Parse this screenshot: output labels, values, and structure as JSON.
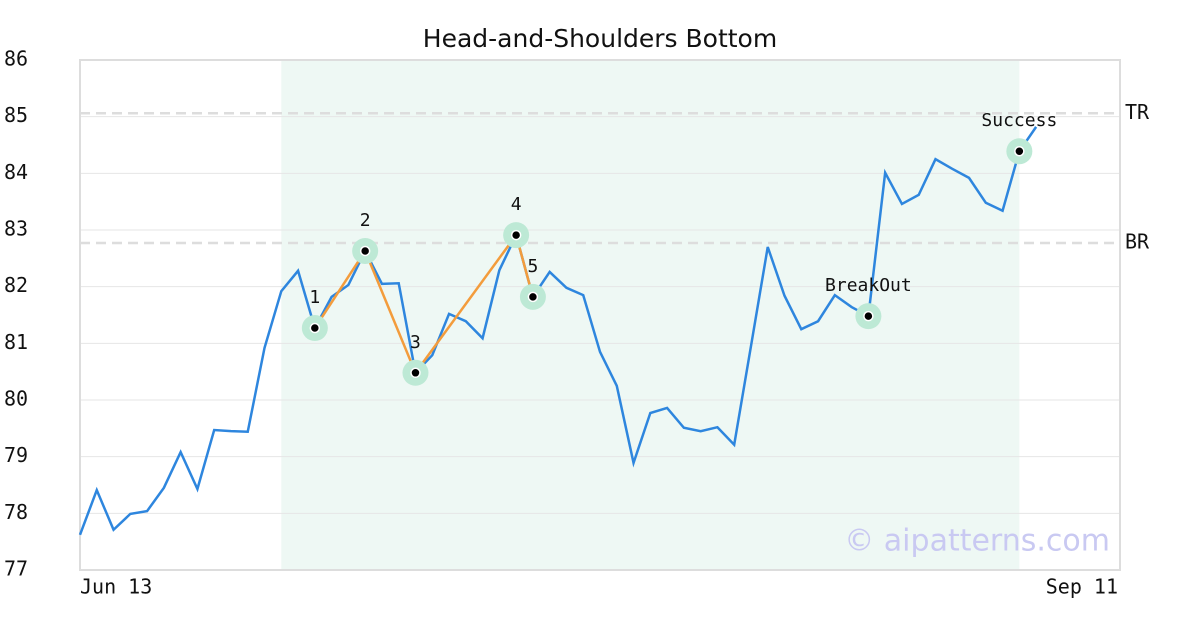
{
  "chart_data": {
    "type": "line",
    "title": "Head-and-Shoulders Bottom",
    "xlim": [
      0,
      62
    ],
    "xticks": [
      {
        "value": 0,
        "label": "Jun 13"
      },
      {
        "value": 62,
        "label": "Sep 11"
      }
    ],
    "ylim": [
      77,
      86
    ],
    "yticks": [
      77,
      78,
      79,
      80,
      81,
      82,
      83,
      84,
      85,
      86
    ],
    "grid": true,
    "highlight": [
      12,
      56
    ],
    "series": [
      {
        "color": "#2e86de",
        "x": [
          0,
          1,
          2,
          3,
          4,
          5,
          6,
          7,
          8,
          9,
          10,
          11,
          12,
          13,
          14,
          15,
          16,
          17,
          18,
          19,
          20,
          21,
          22,
          23,
          24,
          25,
          26,
          27,
          28,
          29,
          30,
          31,
          32,
          33,
          34,
          35,
          36,
          37,
          38,
          39,
          40,
          41,
          42,
          43,
          44,
          45,
          46,
          47,
          48,
          49,
          50,
          51,
          52,
          53,
          54,
          55,
          56,
          57
        ],
        "values": [
          77.62,
          78.41,
          77.71,
          77.99,
          78.04,
          78.45,
          79.08,
          78.43,
          79.47,
          79.45,
          79.44,
          80.92,
          81.92,
          82.28,
          81.27,
          81.82,
          82.03,
          82.63,
          82.05,
          82.06,
          80.48,
          80.79,
          81.52,
          81.39,
          81.09,
          82.29,
          82.91,
          81.82,
          82.26,
          81.98,
          81.85,
          80.85,
          80.25,
          78.89,
          79.77,
          79.86,
          79.51,
          79.45,
          79.52,
          79.21,
          80.95,
          82.7,
          81.84,
          81.25,
          81.39,
          81.85,
          81.64,
          81.48,
          84.01,
          83.46,
          83.62,
          84.25,
          84.08,
          83.92,
          83.48,
          83.34,
          84.39,
          84.82
        ]
      }
    ],
    "pattern_color": "#f39c3c",
    "points": [
      {
        "label": "1",
        "x": 14,
        "y": 81.27
      },
      {
        "label": "2",
        "x": 17,
        "y": 82.63
      },
      {
        "label": "3",
        "x": 20,
        "y": 80.48
      },
      {
        "label": "4",
        "x": 26,
        "y": 82.91
      },
      {
        "label": "5",
        "x": 27,
        "y": 81.82
      },
      {
        "label": "BreakOut",
        "x": 47,
        "y": 81.48
      },
      {
        "label": "Success",
        "x": 56,
        "y": 84.39
      }
    ],
    "pattern_points": 5,
    "levels": [
      {
        "label": "TR",
        "value": 85.06
      },
      {
        "label": "BR",
        "value": 82.77
      }
    ],
    "watermark": "© aipatterns.com"
  }
}
